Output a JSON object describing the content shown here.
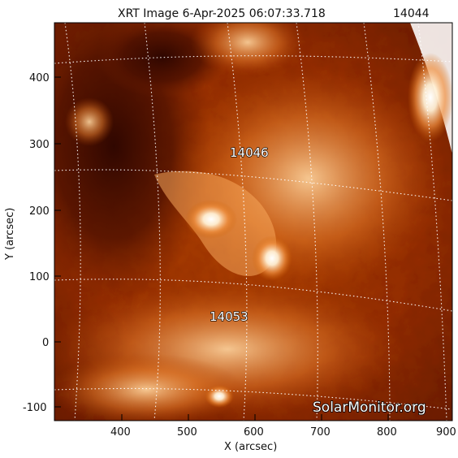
{
  "header": {
    "title": "XRT Image  6-Apr-2025 06:07:33.718",
    "corner_label": "14044"
  },
  "axes": {
    "x": {
      "label": "X (arcsec)",
      "ticks": [
        "400",
        "500",
        "600",
        "700",
        "800",
        "900"
      ]
    },
    "y": {
      "label": "Y (arcsec)",
      "ticks": [
        "400",
        "300",
        "200",
        "100",
        "0",
        "-100"
      ]
    }
  },
  "regions": [
    {
      "label": "14046"
    },
    {
      "label": "14053"
    }
  ],
  "watermark": {
    "text": "SolarMonitor.org"
  },
  "colors": {
    "background": "#ffffff",
    "frame": "#000000",
    "plasma_dark": "#5a1200",
    "plasma_mid": "#c24800",
    "plasma_bright": "#ffd6a0",
    "grid": "#ffffff"
  }
}
